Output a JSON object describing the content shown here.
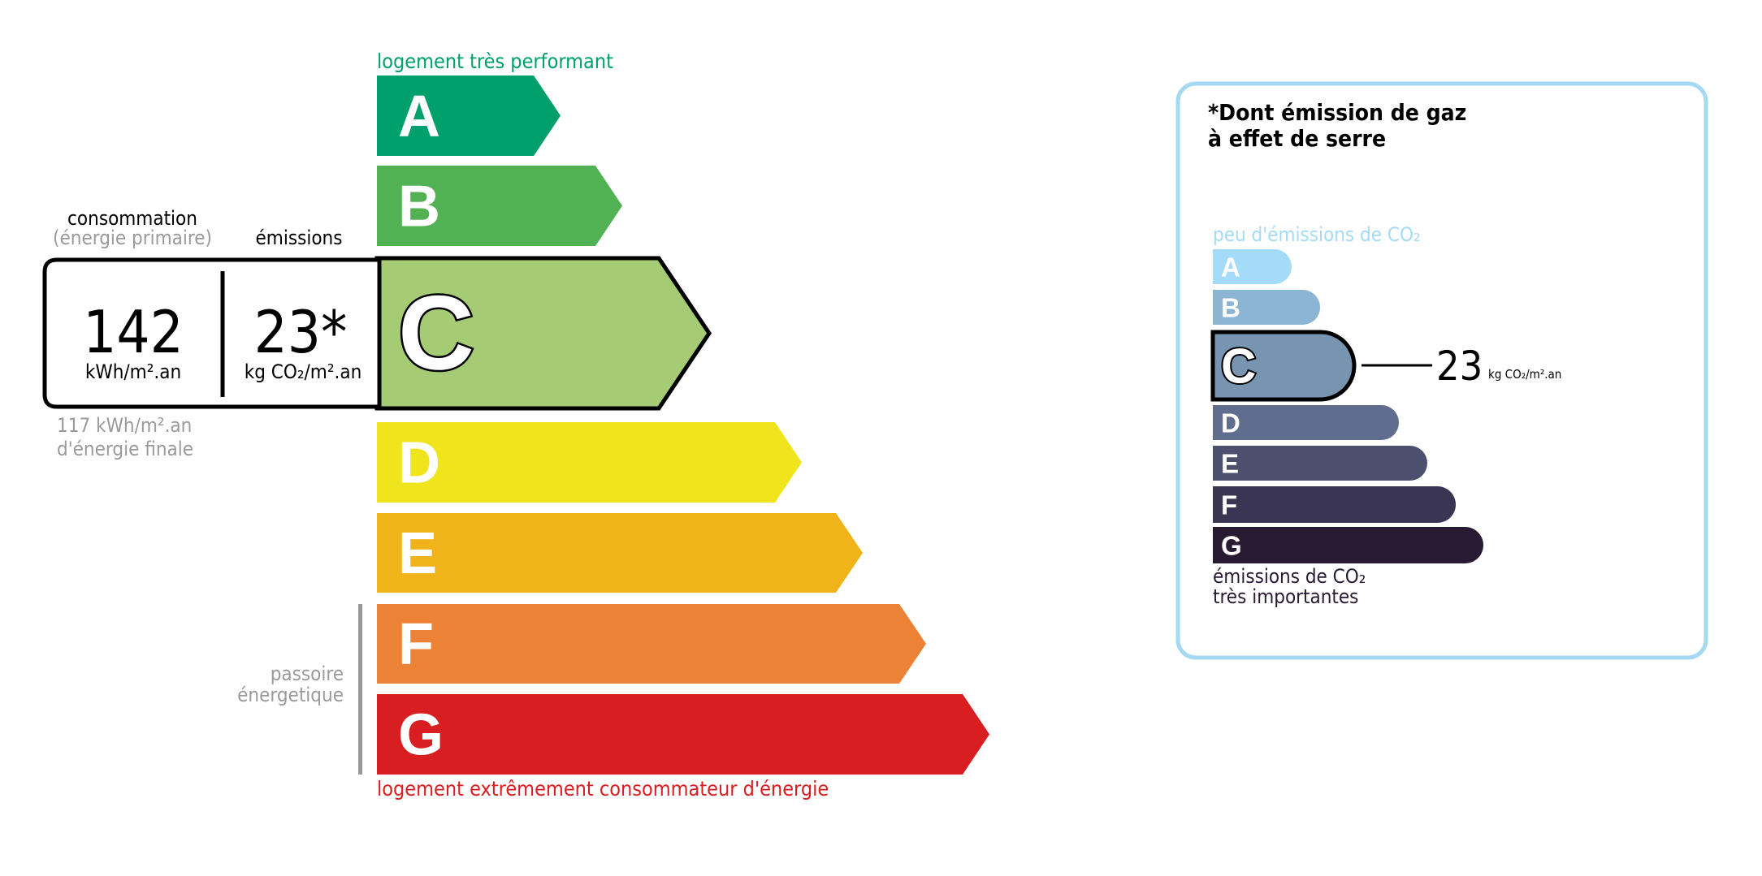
{
  "energy": {
    "top_label": "logement très performant",
    "bottom_label": "logement extrêmement consommateur d'énergie",
    "classes": [
      {
        "letter": "A",
        "color": "#00a06d"
      },
      {
        "letter": "B",
        "color": "#52b153"
      },
      {
        "letter": "C",
        "color": "#a5cc74"
      },
      {
        "letter": "D",
        "color": "#f0e51c"
      },
      {
        "letter": "E",
        "color": "#f0b41a"
      },
      {
        "letter": "F",
        "color": "#eb8235"
      },
      {
        "letter": "G",
        "color": "#d81e20"
      }
    ],
    "active_class": "C",
    "consumption_header": "consommation",
    "consumption_subheader": "(énergie primaire)",
    "emissions_header": "émissions",
    "consumption_value": "142",
    "consumption_unit": "kWh/m².an",
    "emissions_value": "23*",
    "emissions_unit": "kg CO₂/m².an",
    "final_energy_line1": "117 kWh/m².an",
    "final_energy_line2": "d'énergie finale",
    "passoire_line1": "passoire",
    "passoire_line2": "énergetique"
  },
  "ges": {
    "title_line1": "*Dont émission de gaz",
    "title_line2": "à effet de serre",
    "top_label": "peu d'émissions de CO₂",
    "bottom_label_line1": "émissions de CO₂",
    "bottom_label_line2": "très importantes",
    "classes": [
      {
        "letter": "A",
        "color": "#a4dbf8"
      },
      {
        "letter": "B",
        "color": "#8cb4d3"
      },
      {
        "letter": "C",
        "color": "#7794b1"
      },
      {
        "letter": "D",
        "color": "#5f6e8f"
      },
      {
        "letter": "E",
        "color": "#4c4f6e"
      },
      {
        "letter": "F",
        "color": "#3a3552"
      },
      {
        "letter": "G",
        "color": "#281a33"
      }
    ],
    "active_class": "C",
    "value": "23",
    "unit": "kg CO₂/m².an",
    "border_color": "#a5d8f3"
  }
}
